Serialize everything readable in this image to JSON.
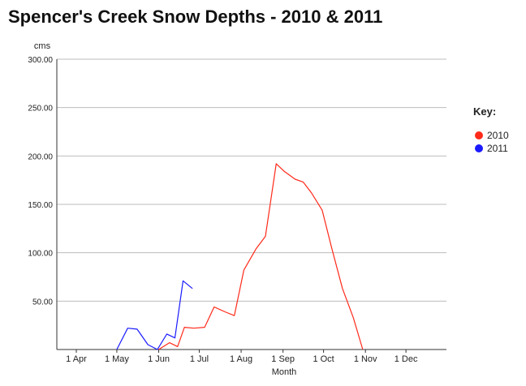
{
  "chart_data": {
    "type": "line",
    "title": "Spencer's Creek Snow Depths - 2010 & 2011",
    "ylabel": "cms",
    "xlabel": "Month",
    "ylim": [
      0,
      300
    ],
    "y_ticks": [
      "50.00",
      "100.00",
      "150.00",
      "200.00",
      "250.00",
      "300.00"
    ],
    "x_ticks": [
      "1 Apr",
      "1 May",
      "1 Jun",
      "1 Jul",
      "1 Aug",
      "1 Sep",
      "1 Oct",
      "1 Nov",
      "1 Dec"
    ],
    "grid": true,
    "legend": {
      "title": "Key:",
      "placement": "right"
    },
    "series": [
      {
        "name": "2010",
        "color": "#ff2a1a",
        "points": [
          [
            "2010-06-01",
            0
          ],
          [
            "2010-06-09",
            7
          ],
          [
            "2010-06-15",
            3
          ],
          [
            "2010-06-20",
            23
          ],
          [
            "2010-06-27",
            22
          ],
          [
            "2010-07-05",
            23
          ],
          [
            "2010-07-12",
            44
          ],
          [
            "2010-07-20",
            39
          ],
          [
            "2010-07-27",
            35
          ],
          [
            "2010-08-03",
            82
          ],
          [
            "2010-08-12",
            104
          ],
          [
            "2010-08-19",
            117
          ],
          [
            "2010-08-27",
            192
          ],
          [
            "2010-09-02",
            184
          ],
          [
            "2010-09-10",
            176
          ],
          [
            "2010-09-16",
            173
          ],
          [
            "2010-09-22",
            162
          ],
          [
            "2010-09-30",
            144
          ],
          [
            "2010-10-07",
            105
          ],
          [
            "2010-10-15",
            63
          ],
          [
            "2010-10-23",
            33
          ],
          [
            "2010-10-30",
            0
          ]
        ]
      },
      {
        "name": "2011",
        "color": "#1a1aff",
        "points": [
          [
            "2011-05-01",
            0
          ],
          [
            "2011-05-09",
            22
          ],
          [
            "2011-05-16",
            21
          ],
          [
            "2011-05-24",
            5
          ],
          [
            "2011-05-31",
            0
          ],
          [
            "2011-06-07",
            16
          ],
          [
            "2011-06-13",
            12
          ],
          [
            "2011-06-19",
            71
          ],
          [
            "2011-06-26",
            63
          ]
        ]
      }
    ]
  }
}
